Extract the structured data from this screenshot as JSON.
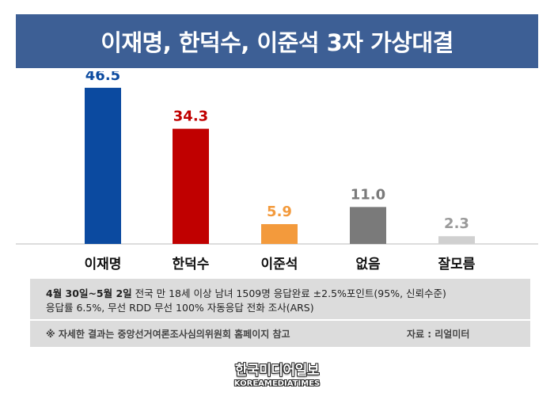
{
  "chart_data": {
    "type": "bar",
    "title": "이재명, 한덕수, 이준석 3자 가상대결",
    "categories": [
      "이재명",
      "한덕수",
      "이준석",
      "없음",
      "잘모름"
    ],
    "values": [
      46.5,
      34.3,
      5.9,
      11.0,
      2.3
    ],
    "value_labels": [
      "46.5",
      "34.3",
      "5.9",
      "11.0",
      "2.3"
    ],
    "colors": [
      "#0b4aa0",
      "#c00000",
      "#f39a3c",
      "#7a7a7a",
      "#d0d0d0"
    ],
    "label_colors": [
      "#0b4aa0",
      "#c00000",
      "#f39a3c",
      "#7a7a7a",
      "#9a9a9a"
    ],
    "ylim": [
      0,
      50
    ],
    "grid": false,
    "legend": "none"
  },
  "note": {
    "date_bold": "4월 30일~5월 2일",
    "line1_rest": " 전국 만 18세 이상 남녀 1509명 응답완료 ±2.5%포인트(95%, 신뢰수준)",
    "line2": "응답률 6.5%, 무선 RDD 무선 100% 자동응답 전화 조사(ARS)",
    "reference": "※ 자세한 결과는 중앙선거여론조사심의위원회 홈페이지 참고",
    "source": "자료 : 리얼미터"
  },
  "logo": {
    "korean": "한국미디어일보",
    "english": "KOREAMEDIATIMES"
  }
}
